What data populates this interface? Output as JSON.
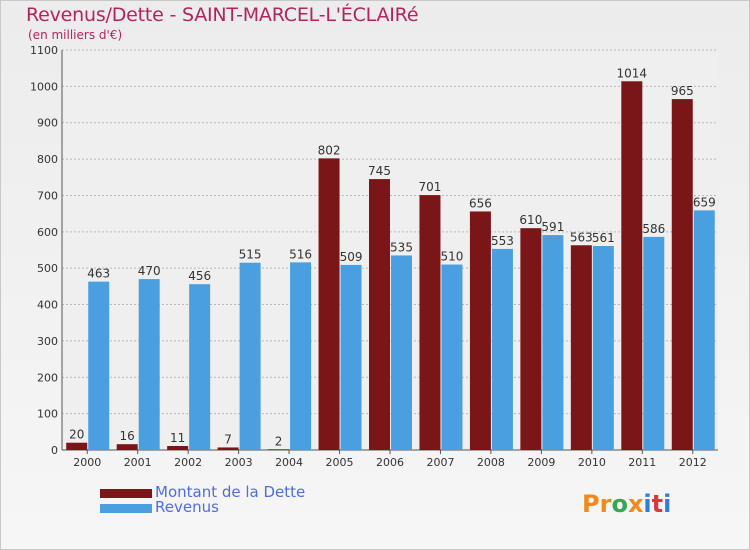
{
  "chart_data": {
    "type": "bar",
    "title": "Revenus/Dette - SAINT-MARCEL-L'ÉCLAIRé",
    "subtitle": "(en milliers d'€)",
    "categories": [
      "2000",
      "2001",
      "2002",
      "2003",
      "2004",
      "2005",
      "2006",
      "2007",
      "2008",
      "2009",
      "2010",
      "2011",
      "2012"
    ],
    "series": [
      {
        "name": "Montant de la Dette",
        "color": "#7a1518",
        "values": [
          20,
          16,
          11,
          7,
          2,
          802,
          745,
          701,
          656,
          610,
          563,
          1014,
          965
        ]
      },
      {
        "name": "Revenus",
        "color": "#4a9fe0",
        "values": [
          463,
          470,
          456,
          515,
          516,
          509,
          535,
          510,
          553,
          591,
          561,
          586,
          659
        ]
      }
    ],
    "ylim": [
      0,
      1100
    ],
    "yticks": [
      0,
      100,
      200,
      300,
      400,
      500,
      600,
      700,
      800,
      900,
      1000,
      1100
    ],
    "grid": true,
    "legend_position": "bottom-left"
  },
  "logo": {
    "letters": [
      "P",
      "r",
      "o",
      "x",
      "i",
      "t",
      "i"
    ],
    "colors": [
      "#f08a1c",
      "#f08a1c",
      "#34a853",
      "#f08a1c",
      "#2f7fd6",
      "#d83a3a",
      "#2f7fd6"
    ]
  }
}
